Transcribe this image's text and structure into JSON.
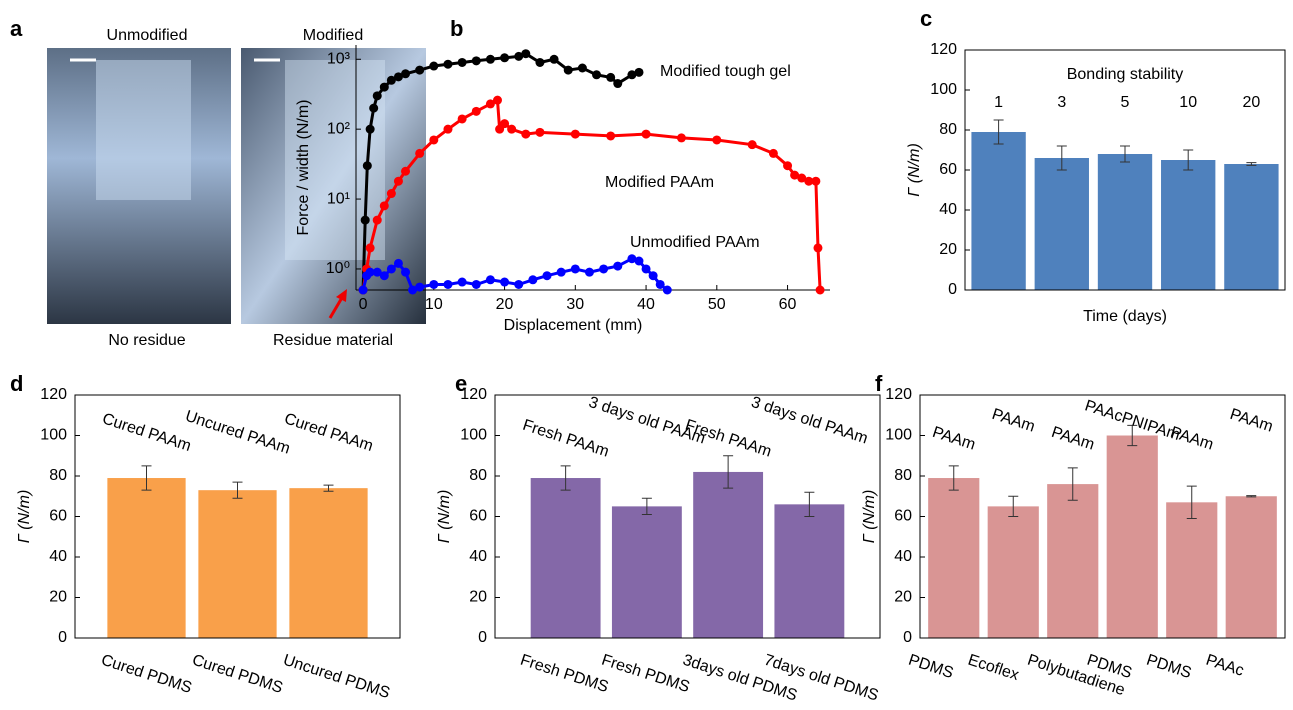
{
  "photo_panel": {
    "panel": "a",
    "images": [
      {
        "title": "Unmodified",
        "caption": "No residue"
      },
      {
        "title": "Modified",
        "caption": "Residue material"
      }
    ]
  },
  "chart_data": [
    {
      "type": "line",
      "panel": "b",
      "xlabel": "Displacement (mm)",
      "ylabel": "Force / width (N/m)",
      "log_y": true,
      "xlim": [
        -1,
        66
      ],
      "xticks": [
        0,
        10,
        20,
        30,
        40,
        50,
        60
      ],
      "ylim": [
        0.5,
        1600
      ],
      "yticks": [
        {
          "value": 1,
          "label": "10⁰"
        },
        {
          "value": 10,
          "label": "10¹"
        },
        {
          "value": 100,
          "label": "10²"
        },
        {
          "value": 1000,
          "label": "10³"
        }
      ],
      "series": [
        {
          "name": "Modified tough gel",
          "color": "#000000",
          "x": [
            0,
            0.3,
            0.6,
            1,
            1.5,
            2,
            3,
            4,
            5,
            6,
            8,
            10,
            12,
            14,
            16,
            18,
            20,
            22,
            23,
            25,
            27,
            29,
            31,
            33,
            35,
            36,
            38,
            39
          ],
          "values": [
            0.5,
            5,
            30,
            100,
            200,
            300,
            400,
            500,
            560,
            620,
            700,
            800,
            850,
            900,
            950,
            1000,
            1050,
            1100,
            1200,
            900,
            1000,
            700,
            750,
            600,
            550,
            450,
            600,
            650
          ]
        },
        {
          "name": "Modified PAAm",
          "color": "#ff0000",
          "x": [
            0,
            0.5,
            1,
            2,
            3,
            4,
            5,
            6,
            8,
            10,
            12,
            14,
            16,
            18,
            19,
            19.3,
            20,
            21,
            23,
            25,
            30,
            35,
            40,
            45,
            50,
            55,
            58,
            60,
            61,
            62,
            63,
            64,
            64.3,
            64.6
          ],
          "values": [
            0.5,
            1,
            2,
            5,
            8,
            12,
            18,
            25,
            45,
            70,
            100,
            140,
            180,
            230,
            260,
            100,
            120,
            100,
            85,
            90,
            85,
            80,
            85,
            75,
            70,
            60,
            45,
            30,
            22,
            20,
            18,
            18,
            2,
            0.5
          ]
        },
        {
          "name": "Unmodified PAAm",
          "color": "#0000ff",
          "x": [
            0,
            0.5,
            1,
            2,
            3,
            4,
            5,
            6,
            7,
            8,
            10,
            12,
            14,
            16,
            18,
            20,
            22,
            24,
            26,
            28,
            30,
            32,
            34,
            36,
            38,
            39,
            40,
            41,
            42,
            43
          ],
          "values": [
            0.5,
            0.8,
            0.9,
            0.9,
            0.8,
            1.0,
            1.2,
            0.9,
            0.5,
            0.55,
            0.6,
            0.6,
            0.65,
            0.6,
            0.7,
            0.65,
            0.6,
            0.7,
            0.8,
            0.9,
            1.0,
            0.9,
            1.0,
            1.1,
            1.4,
            1.3,
            1.0,
            0.8,
            0.6,
            0.5
          ]
        }
      ]
    },
    {
      "type": "bar",
      "panel": "c",
      "annotation": "Bonding stability",
      "xlabel": "Time (days)",
      "ylabel": "Γ (N/m)",
      "categories": [
        "1",
        "3",
        "5",
        "10",
        "20"
      ],
      "values": [
        79,
        66,
        68,
        65,
        63
      ],
      "errors": [
        6,
        6,
        4,
        5,
        0.7
      ],
      "color": "#4f81bd",
      "ylim": [
        0,
        120
      ],
      "yticks": [
        0,
        20,
        40,
        60,
        80,
        100,
        120
      ]
    },
    {
      "type": "bar",
      "panel": "d",
      "ylabel": "Γ (N/m)",
      "top_labels": [
        "Cured PAAm",
        "Uncured PAAm",
        "Cured PAAm"
      ],
      "categories": [
        "Cured PDMS",
        "Cured PDMS",
        "Uncured PDMS"
      ],
      "values": [
        79,
        73,
        74
      ],
      "errors": [
        6,
        4,
        1.5
      ],
      "color": "#f9a04a",
      "ylim": [
        0,
        120
      ],
      "yticks": [
        0,
        20,
        40,
        60,
        80,
        100,
        120
      ]
    },
    {
      "type": "bar",
      "panel": "e",
      "ylabel": "Γ (N/m)",
      "top_labels": [
        "Fresh PAAm",
        "3 days old PAAm",
        "Fresh PAAm",
        "3 days old PAAm"
      ],
      "categories": [
        "Fresh PDMS",
        "Fresh PDMS",
        "3days old PDMS",
        "7days old PDMS"
      ],
      "values": [
        79,
        65,
        82,
        66
      ],
      "errors": [
        6,
        4,
        8,
        6
      ],
      "color": "#8468a8",
      "ylim": [
        0,
        120
      ],
      "yticks": [
        0,
        20,
        40,
        60,
        80,
        100,
        120
      ]
    },
    {
      "type": "bar",
      "panel": "f",
      "ylabel": "Γ (N/m)",
      "top_labels": [
        "PAAm",
        "PAAm",
        "PAAm",
        "PAAcPNIPAm",
        "PAAm",
        "PAAm"
      ],
      "categories": [
        "PDMS",
        "Ecoflex",
        "Polybutadiene",
        "PDMS",
        "PDMS",
        "PAAc"
      ],
      "values": [
        79,
        65,
        76,
        100,
        67,
        70
      ],
      "errors": [
        6,
        5,
        8,
        5,
        8,
        0.3
      ],
      "color": "#d99594",
      "ylim": [
        0,
        120
      ],
      "yticks": [
        0,
        20,
        40,
        60,
        80,
        100,
        120
      ]
    }
  ]
}
